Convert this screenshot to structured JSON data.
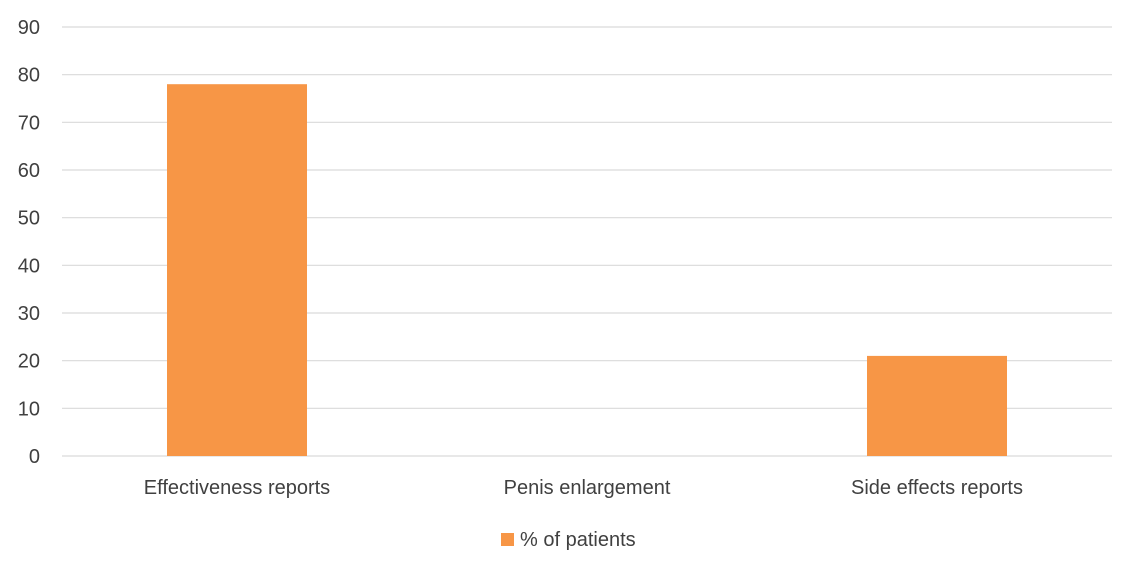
{
  "chart_data": {
    "type": "bar",
    "categories": [
      "Effectiveness reports",
      "Penis enlargement",
      "Side effects reports"
    ],
    "series": [
      {
        "name": "% of patients",
        "values": [
          78,
          0,
          21
        ],
        "color": "#F79646"
      }
    ],
    "ylim": [
      0,
      90
    ],
    "yticks": [
      0,
      10,
      20,
      30,
      40,
      50,
      60,
      70,
      80,
      90
    ],
    "grid": true,
    "legend_position": "bottom"
  },
  "colors": {
    "gridline": "#d9d9d9",
    "text": "#404040",
    "bar": "#F79646"
  }
}
